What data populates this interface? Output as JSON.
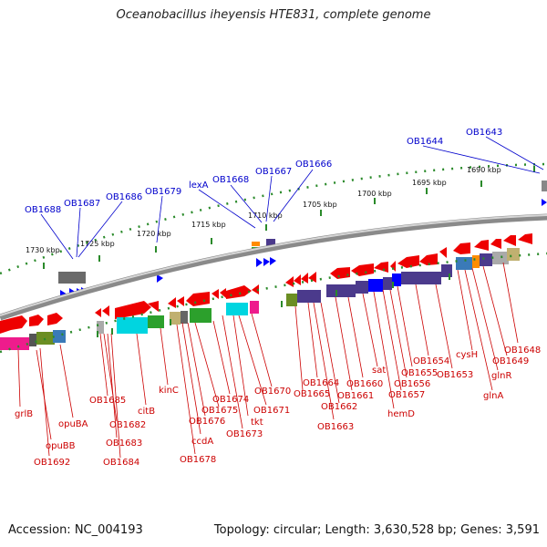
{
  "title": "Oceanobacillus iheyensis HTE831, complete genome",
  "footer": {
    "accession": "Accession: NC_004193",
    "summary": "Topology: circular; Length: 3,630,528 bp; Genes: 3,591"
  },
  "colors": {
    "ruler_tick": "#2a8a2a",
    "label_blue": "#0000cc",
    "label_red": "#cc0000",
    "backbone": "#8a8a8a"
  },
  "kbp_ticks": [
    "1690 kbp",
    "1695 kbp",
    "1700 kbp",
    "1705 kbp",
    "1710 kbp",
    "1715 kbp",
    "1720 kbp",
    "1725 kbp",
    "1730 kbp"
  ],
  "top_labels": [
    "OB1643",
    "OB1644",
    "OB1666",
    "OB1667",
    "OB1668",
    "lexA",
    "OB1679",
    "OB1686",
    "OB1687",
    "OB1688"
  ],
  "bottom_labels": [
    "grlB",
    "opuBB",
    "OB1692",
    "opuBA",
    "OB1685",
    "OB1682",
    "OB1683",
    "OB1684",
    "citB",
    "kinC",
    "OB1678",
    "ccdA",
    "OB1676",
    "OB1675",
    "OB1674",
    "OB1673",
    "tkt",
    "OB1671",
    "OB1670",
    "OB1665",
    "OB1664",
    "OB1663",
    "OB1662",
    "OB1661",
    "OB1660",
    "sat",
    "hemD",
    "OB1657",
    "OB1656",
    "OB1655",
    "OB1654",
    "OB1653",
    "cysH",
    "glnA",
    "glnR",
    "OB1649",
    "OB1648"
  ]
}
